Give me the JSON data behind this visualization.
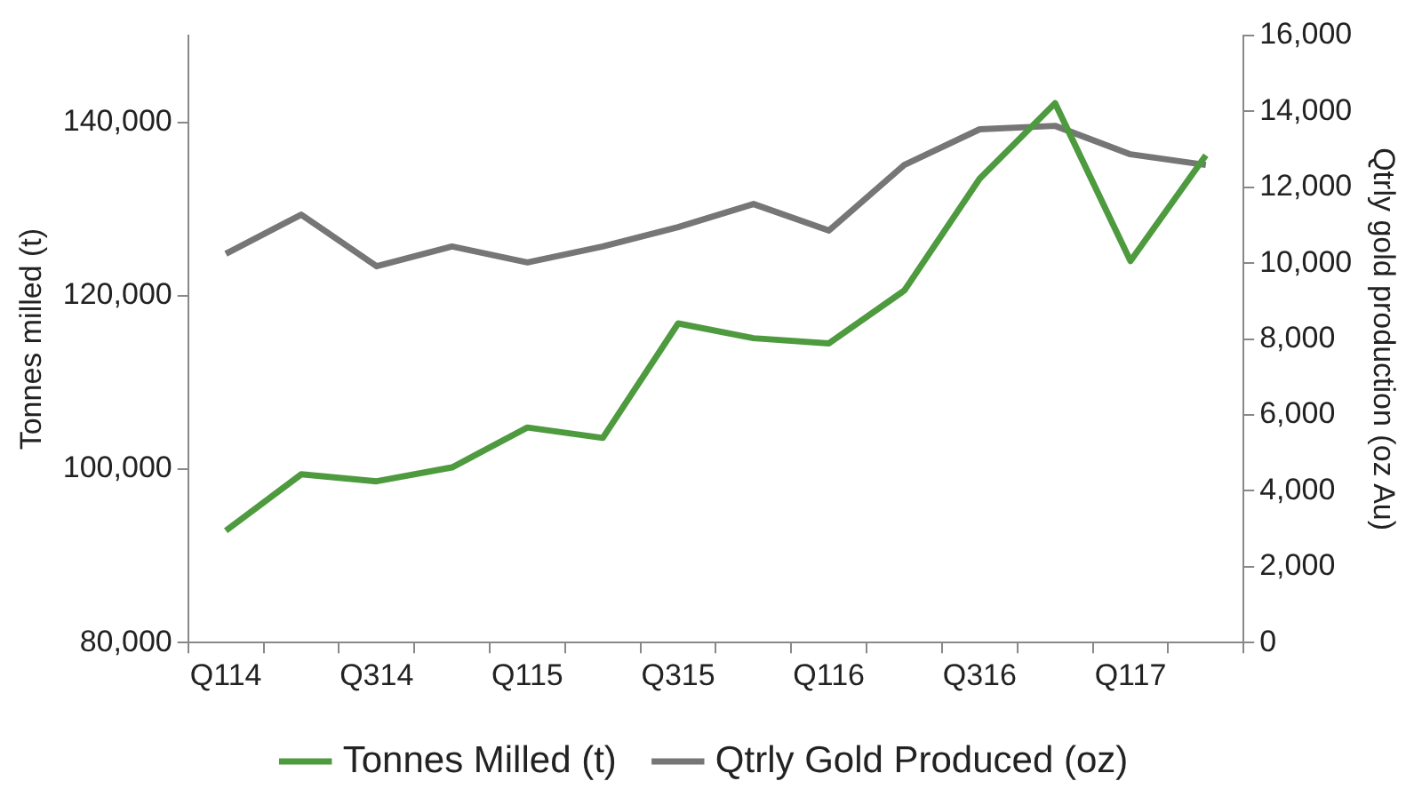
{
  "chart_data": {
    "type": "line",
    "ylabel": "Tonnes milled (t)",
    "y2label": "Qtrly gold production (oz Au)",
    "categories": [
      "Q114",
      null,
      "Q314",
      null,
      "Q115",
      null,
      "Q315",
      null,
      "Q116",
      null,
      "Q316",
      null,
      "Q117",
      null
    ],
    "series": [
      {
        "name": "Tonnes Milled (t)",
        "color": "#4e9a3e",
        "values": [
          92900,
          99400,
          98600,
          100200,
          104800,
          103600,
          116800,
          115100,
          114500,
          120600,
          133500,
          142200,
          124000,
          136200
        ]
      },
      {
        "name": "Qtrly Gold Produced (oz)",
        "color": "#767676",
        "axis": "y2",
        "values": [
          10250,
          11280,
          9920,
          10440,
          10020,
          10440,
          10950,
          11560,
          10860,
          12590,
          13530,
          13620,
          12870,
          12590
        ]
      }
    ],
    "ylim": [
      80000,
      150000
    ],
    "yticks": [
      {
        "value": 80000,
        "label": "80,000"
      },
      {
        "value": 100000,
        "label": "100,000"
      },
      {
        "value": 120000,
        "label": "120,000"
      },
      {
        "value": 140000,
        "label": "140,000"
      }
    ],
    "y2lim": [
      0,
      16000
    ],
    "y2ticks": [
      0,
      {
        "value": 2000,
        "label": "2,000"
      },
      {
        "value": 4000,
        "label": "4,000"
      },
      {
        "value": 6000,
        "label": "6,000"
      },
      {
        "value": 8000,
        "label": "8,000"
      },
      {
        "value": 10000,
        "label": "10,000"
      },
      {
        "value": 12000,
        "label": "12,000"
      },
      {
        "value": 14000,
        "label": "14,000"
      },
      {
        "value": 16000,
        "label": "16,000"
      }
    ],
    "grid": false,
    "legend": "bottom",
    "marker": "none"
  }
}
